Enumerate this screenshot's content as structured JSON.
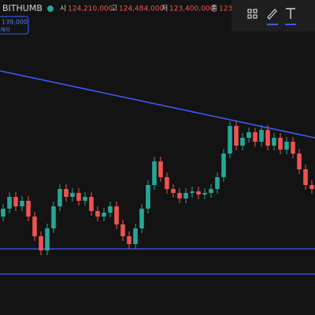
{
  "header": {
    "symbol": "BITHUMB",
    "open_label": "시",
    "open": "124,210,000",
    "high_label": "고",
    "high": "124,484,000",
    "low_label": "저",
    "low": "123,400,000",
    "close_label": "종",
    "close": "123,",
    "badge_price": "139,000",
    "badge_sub": "게이"
  },
  "chart_data": {
    "type": "candlestick",
    "ylim": [
      122500000,
      126500000
    ],
    "up_color": "#26a69a",
    "down_color": "#ef5350",
    "line_color": "#3d5cff",
    "open": [
      123750000,
      123850000,
      124000000,
      123880000,
      123950000,
      123750000,
      123500000,
      123320000,
      123600000,
      123880000,
      124100000,
      124000000,
      124050000,
      123950000,
      124000000,
      123820000,
      123750000,
      123800000,
      123880000,
      123650000,
      123500000,
      123400000,
      123600000,
      123850000,
      124150000,
      124450000,
      124250000,
      124100000,
      124050000,
      123980000,
      124050000,
      124070000,
      124030000,
      124050000,
      124100000,
      124250000,
      124550000,
      124900000,
      124650000,
      124750000,
      124820000,
      124700000,
      124850000,
      124650000,
      124750000,
      124600000,
      124700000,
      124550000,
      124350000,
      124150000
    ],
    "high": [
      123910000,
      124060000,
      124060000,
      124010000,
      124010000,
      123810000,
      123560000,
      123660000,
      123940000,
      124160000,
      124160000,
      124110000,
      124110000,
      124060000,
      124060000,
      123880000,
      123860000,
      123940000,
      123940000,
      123710000,
      123560000,
      123660000,
      123910000,
      124210000,
      124510000,
      124510000,
      124310000,
      124160000,
      124110000,
      124110000,
      124130000,
      124130000,
      124110000,
      124160000,
      124310000,
      124610000,
      124960000,
      124960000,
      124810000,
      124880000,
      124880000,
      124910000,
      124910000,
      124810000,
      124810000,
      124760000,
      124760000,
      124610000,
      124410000,
      124210000
    ],
    "low": [
      123690000,
      123790000,
      123820000,
      123820000,
      123690000,
      123440000,
      123260000,
      123260000,
      123540000,
      123820000,
      123940000,
      123940000,
      123890000,
      123890000,
      123760000,
      123690000,
      123690000,
      123740000,
      123590000,
      123440000,
      123340000,
      123340000,
      123540000,
      123790000,
      124090000,
      124190000,
      124040000,
      123990000,
      123920000,
      123920000,
      123990000,
      123970000,
      123970000,
      123990000,
      124040000,
      124190000,
      124490000,
      124590000,
      124590000,
      124690000,
      124640000,
      124640000,
      124590000,
      124590000,
      124540000,
      124540000,
      124490000,
      124290000,
      124090000,
      124040000
    ],
    "close": [
      123850000,
      124000000,
      123880000,
      123950000,
      123750000,
      123500000,
      123320000,
      123600000,
      123880000,
      124100000,
      124000000,
      124050000,
      123950000,
      124000000,
      123820000,
      123750000,
      123800000,
      123880000,
      123650000,
      123500000,
      123400000,
      123600000,
      123850000,
      124150000,
      124450000,
      124250000,
      124100000,
      124050000,
      123980000,
      124050000,
      124070000,
      124030000,
      124050000,
      124100000,
      124250000,
      124550000,
      124900000,
      124650000,
      124750000,
      124820000,
      124700000,
      124850000,
      124650000,
      124750000,
      124600000,
      124700000,
      124550000,
      124350000,
      124150000,
      124100000
    ],
    "levels": [
      123340000,
      123020000
    ]
  }
}
